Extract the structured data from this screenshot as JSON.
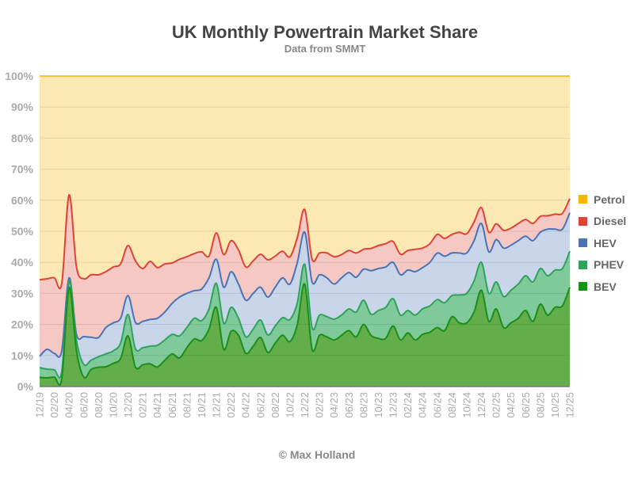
{
  "chart_data": {
    "type": "area",
    "stacked": true,
    "title": "UK Monthly Powertrain Market Share",
    "subtitle": "Data from SMMT",
    "credit": "© Max Holland",
    "xlabel": "",
    "ylabel": "",
    "ylim": [
      0,
      100
    ],
    "y_ticks": [
      "0%",
      "10%",
      "20%",
      "30%",
      "40%",
      "50%",
      "60%",
      "70%",
      "80%",
      "90%",
      "100%"
    ],
    "grid": true,
    "legend_position": "right",
    "categories": [
      "12/19",
      "01/20",
      "02/20",
      "03/20",
      "04/20",
      "05/20",
      "06/20",
      "07/20",
      "08/20",
      "09/20",
      "10/20",
      "11/20",
      "12/20",
      "01/21",
      "02/21",
      "03/21",
      "04/21",
      "05/21",
      "06/21",
      "07/21",
      "08/21",
      "09/21",
      "10/21",
      "11/21",
      "12/21",
      "01/22",
      "02/22",
      "03/22",
      "04/22",
      "05/22",
      "06/22",
      "07/22",
      "08/22",
      "09/22",
      "10/22",
      "11/22",
      "12/22",
      "01/23",
      "02/23",
      "03/23",
      "04/23",
      "05/23",
      "06/23",
      "07/23",
      "08/23",
      "09/23",
      "10/23",
      "11/23",
      "12/23",
      "01/24",
      "02/24",
      "03/24",
      "04/24",
      "05/24",
      "06/24",
      "07/24",
      "08/24",
      "09/24",
      "10/24",
      "11/24",
      "12/24",
      "01/25",
      "02/25",
      "03/25",
      "04/25",
      "05/25",
      "06/25",
      "07/25",
      "08/25",
      "09/25",
      "10/25",
      "11/25",
      "12/25"
    ],
    "x_tick_labels": [
      "12/19",
      "02/20",
      "04/20",
      "06/20",
      "08/20",
      "10/20",
      "12/20",
      "02/21",
      "04/21",
      "06/21",
      "08/21",
      "10/21",
      "12/21",
      "02/22",
      "04/22",
      "06/22",
      "08/22",
      "10/22",
      "12/22",
      "02/23",
      "04/23",
      "06/23",
      "08/23",
      "10/23",
      "12/23",
      "02/24",
      "04/24",
      "06/24",
      "08/24",
      "10/24",
      "12/24",
      "02/25",
      "04/25",
      "06/25",
      "08/25",
      "10/25",
      "12/25"
    ],
    "series": [
      {
        "name": "BEV",
        "color": "#1a8f1a",
        "fill": "#63ad4a",
        "values": [
          3.0,
          2.8,
          3.0,
          2.5,
          31.8,
          11.5,
          3.0,
          5.5,
          6.2,
          6.4,
          7.5,
          9.0,
          16.3,
          6.3,
          7.0,
          7.3,
          6.3,
          8.5,
          10.5,
          9.2,
          12.5,
          15.3,
          14.8,
          18.5,
          25.5,
          12.0,
          17.8,
          16.5,
          10.7,
          13.0,
          15.8,
          11.0,
          14.0,
          16.5,
          14.5,
          20.0,
          33.0,
          12.0,
          16.5,
          16.0,
          15.0,
          16.5,
          18.0,
          16.0,
          20.0,
          16.5,
          15.5,
          15.5,
          19.5,
          15.0,
          17.3,
          15.0,
          16.8,
          17.5,
          19.0,
          18.0,
          22.5,
          20.5,
          20.5,
          24.0,
          31.0,
          21.0,
          25.0,
          19.0,
          20.5,
          22.0,
          24.5,
          21.0,
          26.5,
          23.0,
          25.5,
          26.0,
          32.0
        ]
      },
      {
        "name": "PHEV",
        "color": "#2fa35c",
        "fill": "#80c99b",
        "values": [
          3.1,
          2.8,
          2.4,
          2.3,
          2.1,
          3.3,
          4.1,
          3.0,
          3.4,
          4.1,
          4.0,
          5.0,
          6.9,
          5.9,
          5.5,
          5.7,
          7.0,
          6.5,
          6.3,
          7.1,
          6.5,
          6.7,
          6.4,
          6.5,
          7.7,
          8.4,
          7.7,
          5.5,
          5.3,
          5.5,
          5.6,
          5.6,
          5.5,
          5.7,
          7.1,
          7.0,
          6.3,
          7.0,
          6.5,
          6.5,
          6.7,
          6.5,
          7.0,
          8.0,
          7.8,
          6.8,
          9.0,
          10.0,
          8.8,
          8.0,
          7.2,
          8.0,
          8.2,
          8.5,
          9.0,
          9.0,
          6.8,
          9.0,
          9.5,
          10.0,
          9.0,
          9.0,
          8.7,
          10.0,
          10.5,
          11.0,
          11.2,
          12.7,
          11.5,
          12.7,
          12.0,
          12.0,
          11.6
        ]
      },
      {
        "name": "HEV",
        "color": "#4a73b8",
        "fill": "#c9d5e9",
        "values": [
          3.6,
          6.4,
          5.3,
          6.7,
          1.1,
          2.0,
          9.0,
          7.4,
          6.2,
          8.5,
          9.0,
          8.0,
          6.1,
          8.5,
          8.5,
          8.6,
          8.7,
          9.0,
          10.0,
          12.5,
          11.0,
          8.9,
          10.2,
          10.0,
          7.8,
          11.6,
          11.5,
          11.0,
          11.8,
          11.5,
          10.6,
          12.2,
          12.5,
          12.8,
          11.4,
          13.0,
          10.4,
          14.7,
          13.0,
          12.5,
          11.3,
          12.0,
          11.7,
          11.2,
          10.0,
          14.0,
          13.5,
          13.0,
          11.7,
          13.0,
          13.0,
          14.0,
          13.3,
          14.0,
          15.0,
          15.0,
          13.7,
          13.5,
          13.0,
          13.0,
          12.5,
          13.4,
          13.6,
          15.6,
          14.5,
          14.0,
          12.7,
          13.3,
          11.7,
          15.0,
          13.2,
          12.7,
          12.4
        ]
      },
      {
        "name": "Diesel",
        "color": "#db4437",
        "fill": "#f5c8c3",
        "values": [
          24.7,
          22.7,
          24.3,
          21.7,
          26.7,
          21.7,
          18.6,
          20.1,
          20.2,
          18.0,
          18.0,
          17.5,
          16.1,
          19.8,
          17.0,
          18.7,
          16.3,
          15.5,
          13.0,
          12.2,
          11.8,
          11.9,
          12.0,
          7.0,
          8.5,
          10.5,
          10.0,
          11.0,
          10.7,
          10.5,
          10.6,
          12.0,
          10.0,
          8.6,
          8.8,
          8.0,
          7.3,
          7.3,
          7.0,
          8.0,
          8.8,
          7.5,
          7.1,
          7.8,
          6.4,
          7.2,
          7.4,
          7.5,
          6.7,
          6.6,
          6.3,
          7.2,
          6.3,
          6.0,
          6.0,
          5.7,
          6.0,
          6.7,
          6.2,
          6.0,
          5.1,
          6.3,
          5.1,
          5.7,
          5.5,
          5.5,
          5.4,
          5.5,
          5.1,
          4.3,
          4.8,
          5.1,
          4.5
        ]
      },
      {
        "name": "Petrol",
        "color": "#f4b400",
        "fill": "#fce8b2",
        "values": [
          65.6,
          65.3,
          65.0,
          66.8,
          38.3,
          61.5,
          65.3,
          64.0,
          64.0,
          63.0,
          61.5,
          60.5,
          54.6,
          59.5,
          62.0,
          59.7,
          61.7,
          60.5,
          60.2,
          59.0,
          58.2,
          57.2,
          56.6,
          58.0,
          50.5,
          57.5,
          53.0,
          56.0,
          61.5,
          59.5,
          57.4,
          59.2,
          58.0,
          56.4,
          58.2,
          52.0,
          43.0,
          59.0,
          57.0,
          57.0,
          58.2,
          57.5,
          56.2,
          57.0,
          55.8,
          55.5,
          54.6,
          54.0,
          53.3,
          57.4,
          56.2,
          55.8,
          55.4,
          54.0,
          51.0,
          52.3,
          51.0,
          50.3,
          50.8,
          47.0,
          42.4,
          50.3,
          47.6,
          49.7,
          49.0,
          47.5,
          46.2,
          47.5,
          45.2,
          45.0,
          44.5,
          44.2,
          39.5
        ]
      }
    ],
    "legend_order": [
      "Petrol",
      "Diesel",
      "HEV",
      "PHEV",
      "BEV"
    ]
  }
}
